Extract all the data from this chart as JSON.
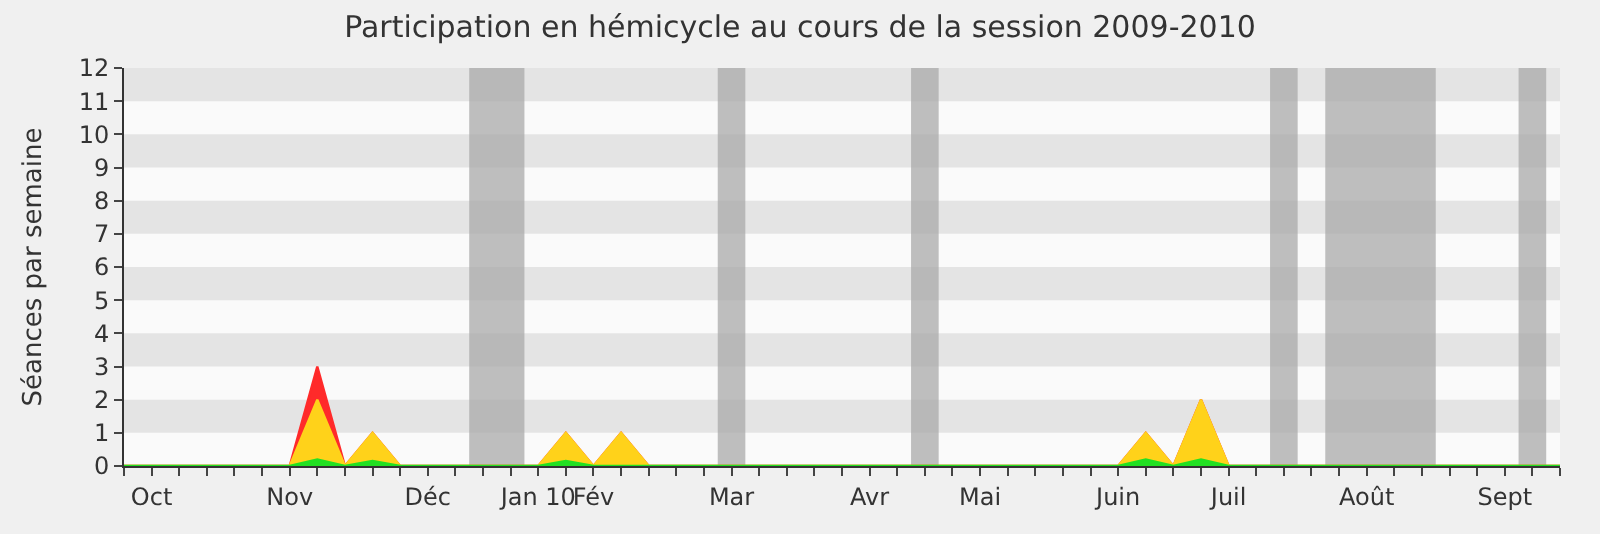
{
  "chart_data": {
    "type": "area",
    "title": "Participation en hémicycle au cours de la session 2009-2010",
    "ylabel": "Séances par semaine",
    "categories": [
      null,
      "Oct",
      null,
      null,
      null,
      null,
      "Nov",
      null,
      null,
      null,
      null,
      "Déc",
      null,
      null,
      null,
      "Jan 10",
      null,
      "Fév",
      null,
      null,
      null,
      null,
      "Mar",
      null,
      null,
      null,
      null,
      "Avr",
      null,
      null,
      null,
      "Mai",
      null,
      null,
      null,
      null,
      "Juin",
      null,
      null,
      null,
      "Juil",
      null,
      null,
      null,
      null,
      "Août",
      null,
      null,
      null,
      null,
      "Sept",
      null,
      null
    ],
    "series": [
      {
        "color": "#ff2a2a",
        "values": [
          0,
          0,
          0,
          0,
          0,
          0,
          0,
          3,
          0,
          1,
          0,
          0,
          0,
          0,
          0,
          0,
          1,
          0,
          1,
          0,
          0,
          0,
          0,
          0,
          0,
          0,
          0,
          0,
          0,
          0,
          0,
          0,
          0,
          0,
          0,
          0,
          0,
          1,
          0,
          2,
          0,
          0,
          0,
          0,
          0,
          0,
          0,
          0,
          0,
          0,
          0,
          0,
          0
        ]
      },
      {
        "color": "#ffd21a",
        "values": [
          0,
          0,
          0,
          0,
          0,
          0,
          0,
          2,
          0,
          1,
          0,
          0,
          0,
          0,
          0,
          0,
          1,
          0,
          1,
          0,
          0,
          0,
          0,
          0,
          0,
          0,
          0,
          0,
          0,
          0,
          0,
          0,
          0,
          0,
          0,
          0,
          0,
          1,
          0,
          2,
          0,
          0,
          0,
          0,
          0,
          0,
          0,
          0,
          0,
          0,
          0,
          0,
          0
        ]
      },
      {
        "color": "#22e022",
        "values": [
          0,
          0,
          0,
          0,
          0,
          0,
          0,
          0.2,
          0,
          0.15,
          0,
          0,
          0,
          0,
          0,
          0,
          0.15,
          0,
          0,
          0,
          0,
          0,
          0,
          0,
          0,
          0,
          0,
          0,
          0,
          0,
          0,
          0,
          0,
          0,
          0,
          0,
          0,
          0.2,
          0,
          0.2,
          0,
          0,
          0,
          0,
          0,
          0,
          0,
          0,
          0,
          0,
          0,
          0,
          0
        ]
      }
    ],
    "ylim": [
      0,
      12
    ],
    "yticks": [
      0,
      1,
      2,
      3,
      4,
      5,
      6,
      7,
      8,
      9,
      10,
      11,
      12
    ]
  }
}
